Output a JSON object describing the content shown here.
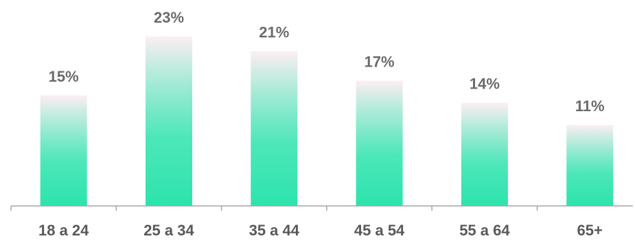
{
  "chart_data": {
    "type": "bar",
    "title": "",
    "xlabel": "",
    "ylabel": "",
    "categories": [
      "18 a 24",
      "25 a 34",
      "35 a 44",
      "45 a 54",
      "55 a 64",
      "65+"
    ],
    "values": [
      15,
      23,
      21,
      17,
      14,
      11
    ],
    "value_labels": [
      "15%",
      "23%",
      "21%",
      "17%",
      "14%",
      "11%"
    ],
    "ylim": [
      0,
      23
    ],
    "grid": false,
    "legend": "none",
    "colors": {
      "bar_bottom": "#2de3ad",
      "bar_top": "#fdeef3",
      "axis": "#a6a6a6",
      "label_text": "#6b6b6b",
      "category_text": "#595959"
    }
  }
}
